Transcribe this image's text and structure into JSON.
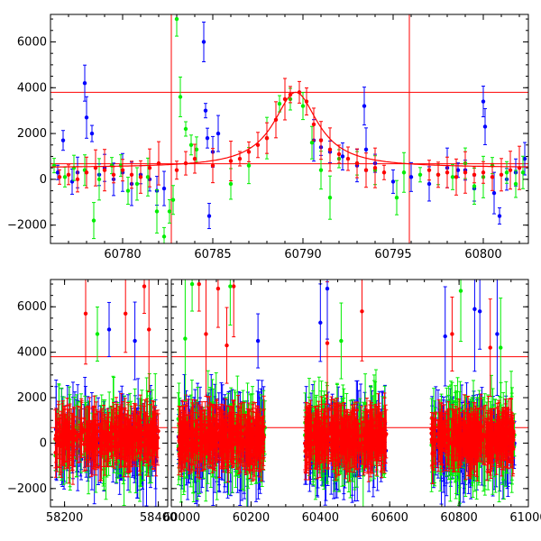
{
  "chart_data": [
    {
      "type": "scatter",
      "panel": "top",
      "title": "",
      "xlabel": "",
      "ylabel": "",
      "xlim": [
        60776,
        60802.5
      ],
      "ylim": [
        -2800,
        7200
      ],
      "x_ticks": [
        60780,
        60785,
        60790,
        60795,
        60800
      ],
      "x_tick_labels": [
        "60780",
        "60785",
        "60790",
        "60795",
        "60800"
      ],
      "y_ticks": [
        -2000,
        0,
        2000,
        4000,
        6000
      ],
      "y_tick_labels": [
        "−2000",
        "0",
        "2000",
        "4000",
        "6000"
      ],
      "hlines": [
        3800,
        680
      ],
      "vlines": [
        60782.7,
        60795.9
      ],
      "reference_color": "#ff0000",
      "series": [
        {
          "color": "#0000ff",
          "points": [
            [
              60776.4,
              300
            ],
            [
              60776.7,
              1700
            ],
            [
              60777.2,
              -100
            ],
            [
              60777.5,
              300
            ],
            [
              60777.9,
              4200
            ],
            [
              60778.0,
              2700
            ],
            [
              60778.3,
              2000
            ],
            [
              60778.7,
              200
            ],
            [
              60779.0,
              500
            ],
            [
              60779.5,
              0
            ],
            [
              60780.0,
              300
            ],
            [
              60780.5,
              -200
            ],
            [
              60781.0,
              200
            ],
            [
              60781.5,
              0
            ],
            [
              60781.9,
              -500
            ],
            [
              60782.3,
              -400
            ],
            [
              60784.5,
              6000
            ],
            [
              60784.6,
              3000
            ],
            [
              60784.7,
              1800
            ],
            [
              60784.8,
              -1600
            ],
            [
              60785.0,
              1200
            ],
            [
              60785.3,
              2000
            ],
            [
              60790.6,
              1700
            ],
            [
              60791.0,
              1400
            ],
            [
              60791.5,
              1200
            ],
            [
              60792.2,
              1000
            ],
            [
              60793.0,
              600
            ],
            [
              60793.4,
              3200
            ],
            [
              60793.5,
              1300
            ],
            [
              60794.0,
              700
            ],
            [
              60795.0,
              -100
            ],
            [
              60796.0,
              100
            ],
            [
              60797.0,
              -200
            ],
            [
              60798.0,
              500
            ],
            [
              60798.6,
              400
            ],
            [
              60799.0,
              400
            ],
            [
              60799.5,
              -400
            ],
            [
              60800.0,
              3400
            ],
            [
              60800.1,
              2300
            ],
            [
              60800.6,
              -600
            ],
            [
              60800.9,
              -1600
            ],
            [
              60801.3,
              0
            ],
            [
              60801.8,
              300
            ],
            [
              60802.3,
              900
            ]
          ]
        },
        {
          "color": "#00ee00",
          "points": [
            [
              60776.2,
              600
            ],
            [
              60776.8,
              100
            ],
            [
              60777.3,
              500
            ],
            [
              60777.9,
              400
            ],
            [
              60778.4,
              -1800
            ],
            [
              60778.7,
              0
            ],
            [
              60779.4,
              600
            ],
            [
              60779.9,
              600
            ],
            [
              60780.3,
              -500
            ],
            [
              60780.8,
              -200
            ],
            [
              60781.4,
              100
            ],
            [
              60781.9,
              -1400
            ],
            [
              60782.3,
              -2500
            ],
            [
              60782.6,
              -1400
            ],
            [
              60782.8,
              -900
            ],
            [
              60783.0,
              7000
            ],
            [
              60783.2,
              3600
            ],
            [
              60783.5,
              2200
            ],
            [
              60783.8,
              1500
            ],
            [
              60784.1,
              1300
            ],
            [
              60786.0,
              -200
            ],
            [
              60787.0,
              600
            ],
            [
              60788.0,
              1800
            ],
            [
              60788.7,
              3300
            ],
            [
              60789.3,
              3500
            ],
            [
              60790.0,
              3200
            ],
            [
              60790.5,
              1600
            ],
            [
              60791.0,
              400
            ],
            [
              60791.5,
              -800
            ],
            [
              60792.0,
              900
            ],
            [
              60793.0,
              700
            ],
            [
              60794.0,
              400
            ],
            [
              60795.2,
              -800
            ],
            [
              60795.6,
              300
            ],
            [
              60796.5,
              200
            ],
            [
              60797.5,
              200
            ],
            [
              60798.3,
              100
            ],
            [
              60799.0,
              700
            ],
            [
              60799.5,
              -300
            ],
            [
              60800.0,
              100
            ],
            [
              60800.5,
              600
            ],
            [
              60801.3,
              300
            ],
            [
              60801.8,
              -200
            ],
            [
              60802.2,
              300
            ]
          ]
        },
        {
          "color": "#ff0000",
          "points": [
            [
              60776.5,
              100
            ],
            [
              60777.0,
              200
            ],
            [
              60777.5,
              0
            ],
            [
              60778.0,
              300
            ],
            [
              60778.5,
              500
            ],
            [
              60779.0,
              400
            ],
            [
              60779.5,
              200
            ],
            [
              60780.0,
              400
            ],
            [
              60780.5,
              200
            ],
            [
              60781.0,
              100
            ],
            [
              60781.5,
              500
            ],
            [
              60782.0,
              700
            ],
            [
              60783.0,
              400
            ],
            [
              60783.5,
              700
            ],
            [
              60784.0,
              900
            ],
            [
              60785.0,
              600
            ],
            [
              60786.0,
              800
            ],
            [
              60786.5,
              900
            ],
            [
              60787.0,
              1200
            ],
            [
              60787.5,
              1500
            ],
            [
              60788.0,
              1800
            ],
            [
              60788.5,
              2600
            ],
            [
              60789.0,
              3500
            ],
            [
              60789.3,
              3700
            ],
            [
              60789.8,
              3800
            ],
            [
              60790.2,
              3400
            ],
            [
              60790.6,
              2400
            ],
            [
              60791.0,
              1700
            ],
            [
              60791.5,
              1300
            ],
            [
              60792.0,
              1100
            ],
            [
              60792.5,
              900
            ],
            [
              60793.0,
              700
            ],
            [
              60793.5,
              400
            ],
            [
              60794.0,
              500
            ],
            [
              60794.5,
              300
            ],
            [
              60797.0,
              400
            ],
            [
              60797.5,
              200
            ],
            [
              60798.0,
              300
            ],
            [
              60798.5,
              100
            ],
            [
              60799.0,
              300
            ],
            [
              60799.5,
              200
            ],
            [
              60800.0,
              300
            ],
            [
              60800.5,
              100
            ],
            [
              60801.0,
              200
            ],
            [
              60801.5,
              400
            ],
            [
              60802.0,
              500
            ]
          ]
        }
      ]
    },
    {
      "type": "scatter",
      "panel": "bottom",
      "title": "",
      "xlabel": "",
      "ylabel": "",
      "broken_axis": true,
      "segments": [
        {
          "xlim": [
            58170,
            58420
          ],
          "x_ticks": [
            58200,
            58400
          ],
          "x_tick_labels": [
            "58200",
            "58400"
          ]
        },
        {
          "xlim": [
            59970,
            61000
          ],
          "x_ticks": [
            60000,
            60200,
            60400,
            60600,
            60800,
            61000
          ],
          "x_tick_labels": [
            "60000",
            "60200",
            "60400",
            "60600",
            "60800",
            "61000"
          ]
        }
      ],
      "ylim": [
        -2800,
        7200
      ],
      "y_ticks": [
        -2000,
        0,
        2000,
        4000,
        6000
      ],
      "y_tick_labels": [
        "−2000",
        "0",
        "2000",
        "4000",
        "6000"
      ],
      "hlines": [
        3800,
        680
      ],
      "reference_color": "#ff0000",
      "observing_seasons": [
        [
          58180,
          58400
        ],
        [
          59990,
          60240
        ],
        [
          60355,
          60590
        ],
        [
          60720,
          60960
        ]
      ],
      "series_colors": [
        "#0000ff",
        "#00ee00",
        "#ff0000"
      ],
      "outliers": [
        {
          "color": "#ff0000",
          "points": [
            [
              58370,
              6900
            ],
            [
              58330,
              5700
            ],
            [
              58245,
              5700
            ],
            [
              58380,
              5000
            ],
            [
              60050,
              7000
            ],
            [
              60105,
              6800
            ],
            [
              60150,
              6900
            ],
            [
              60070,
              4800
            ],
            [
              60130,
              4300
            ],
            [
              60520,
              5800
            ],
            [
              60420,
              4400
            ],
            [
              60780,
              4800
            ],
            [
              60890,
              4200
            ]
          ]
        },
        {
          "color": "#00ee00",
          "points": [
            [
              58270,
              4800
            ],
            [
              60030,
              7000
            ],
            [
              60140,
              6900
            ],
            [
              60805,
              6700
            ],
            [
              60010,
              4600
            ],
            [
              60460,
              4500
            ],
            [
              60920,
              4200
            ]
          ]
        },
        {
          "color": "#0000ff",
          "points": [
            [
              58295,
              5000
            ],
            [
              58350,
              4500
            ],
            [
              60220,
              4500
            ],
            [
              60400,
              5300
            ],
            [
              60420,
              6800
            ],
            [
              60845,
              5900
            ],
            [
              60860,
              5800
            ],
            [
              60760,
              4700
            ],
            [
              60910,
              4800
            ]
          ]
        }
      ]
    }
  ]
}
